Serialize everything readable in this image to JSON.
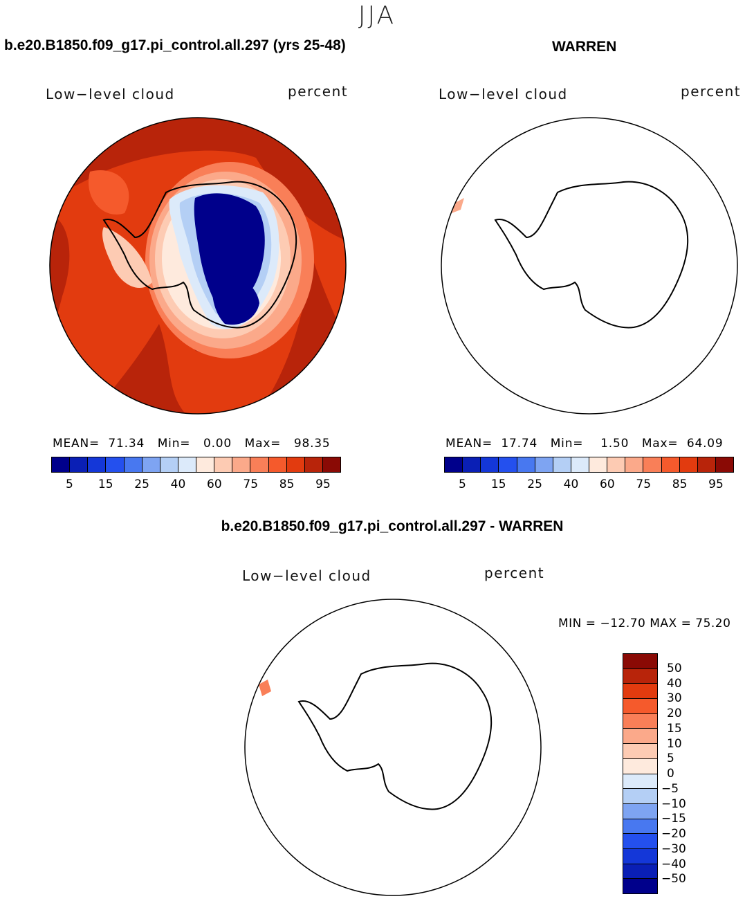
{
  "season": "JJA",
  "panels": {
    "left": {
      "title": "b.e20.B1850.f09_g17.pi_control.all.297 (yrs 25-48)",
      "variable": "Low−level cloud",
      "units": "percent",
      "stats": {
        "mean_label": "MEAN=",
        "mean": "71.34",
        "min_label": "Min=",
        "min": "0.00",
        "max_label": "Max=",
        "max": "98.35"
      }
    },
    "right": {
      "title": "WARREN",
      "variable": "Low−level cloud",
      "units": "percent",
      "stats": {
        "mean_label": "MEAN=",
        "mean": "17.74",
        "min_label": "Min=",
        "min": "1.50",
        "max_label": "Max=",
        "max": "64.09"
      }
    },
    "diff": {
      "title": "b.e20.B1850.f09_g17.pi_control.all.297 - WARREN",
      "variable": "Low−level cloud",
      "units": "percent",
      "minmax": "MIN = −12.70 MAX =   75.20"
    }
  },
  "colorbar_main": {
    "colors": [
      "#00008b",
      "#0a1fb5",
      "#1437d8",
      "#2450ee",
      "#4878f0",
      "#7ea4f2",
      "#b4cff5",
      "#dceafa",
      "#feeadd",
      "#fdcbb3",
      "#fba98a",
      "#f97f58",
      "#f55a2c",
      "#e23b0f",
      "#b8240a",
      "#8a0a05"
    ],
    "ticks": [
      "5",
      "15",
      "25",
      "40",
      "60",
      "75",
      "85",
      "95"
    ]
  },
  "colorbar_diff": {
    "colors": [
      "#8a0a05",
      "#b8240a",
      "#e23b0f",
      "#f55a2c",
      "#f97f58",
      "#fba98a",
      "#fdcbb3",
      "#feeadd",
      "#dceafa",
      "#b4cff5",
      "#7ea4f2",
      "#4878f0",
      "#2450ee",
      "#1437d8",
      "#0a1fb5",
      "#00008b"
    ],
    "ticks": [
      "50",
      "40",
      "30",
      "20",
      "15",
      "10",
      "5",
      "0",
      "−5",
      "−10",
      "−15",
      "−20",
      "−30",
      "−40",
      "−50"
    ]
  }
}
